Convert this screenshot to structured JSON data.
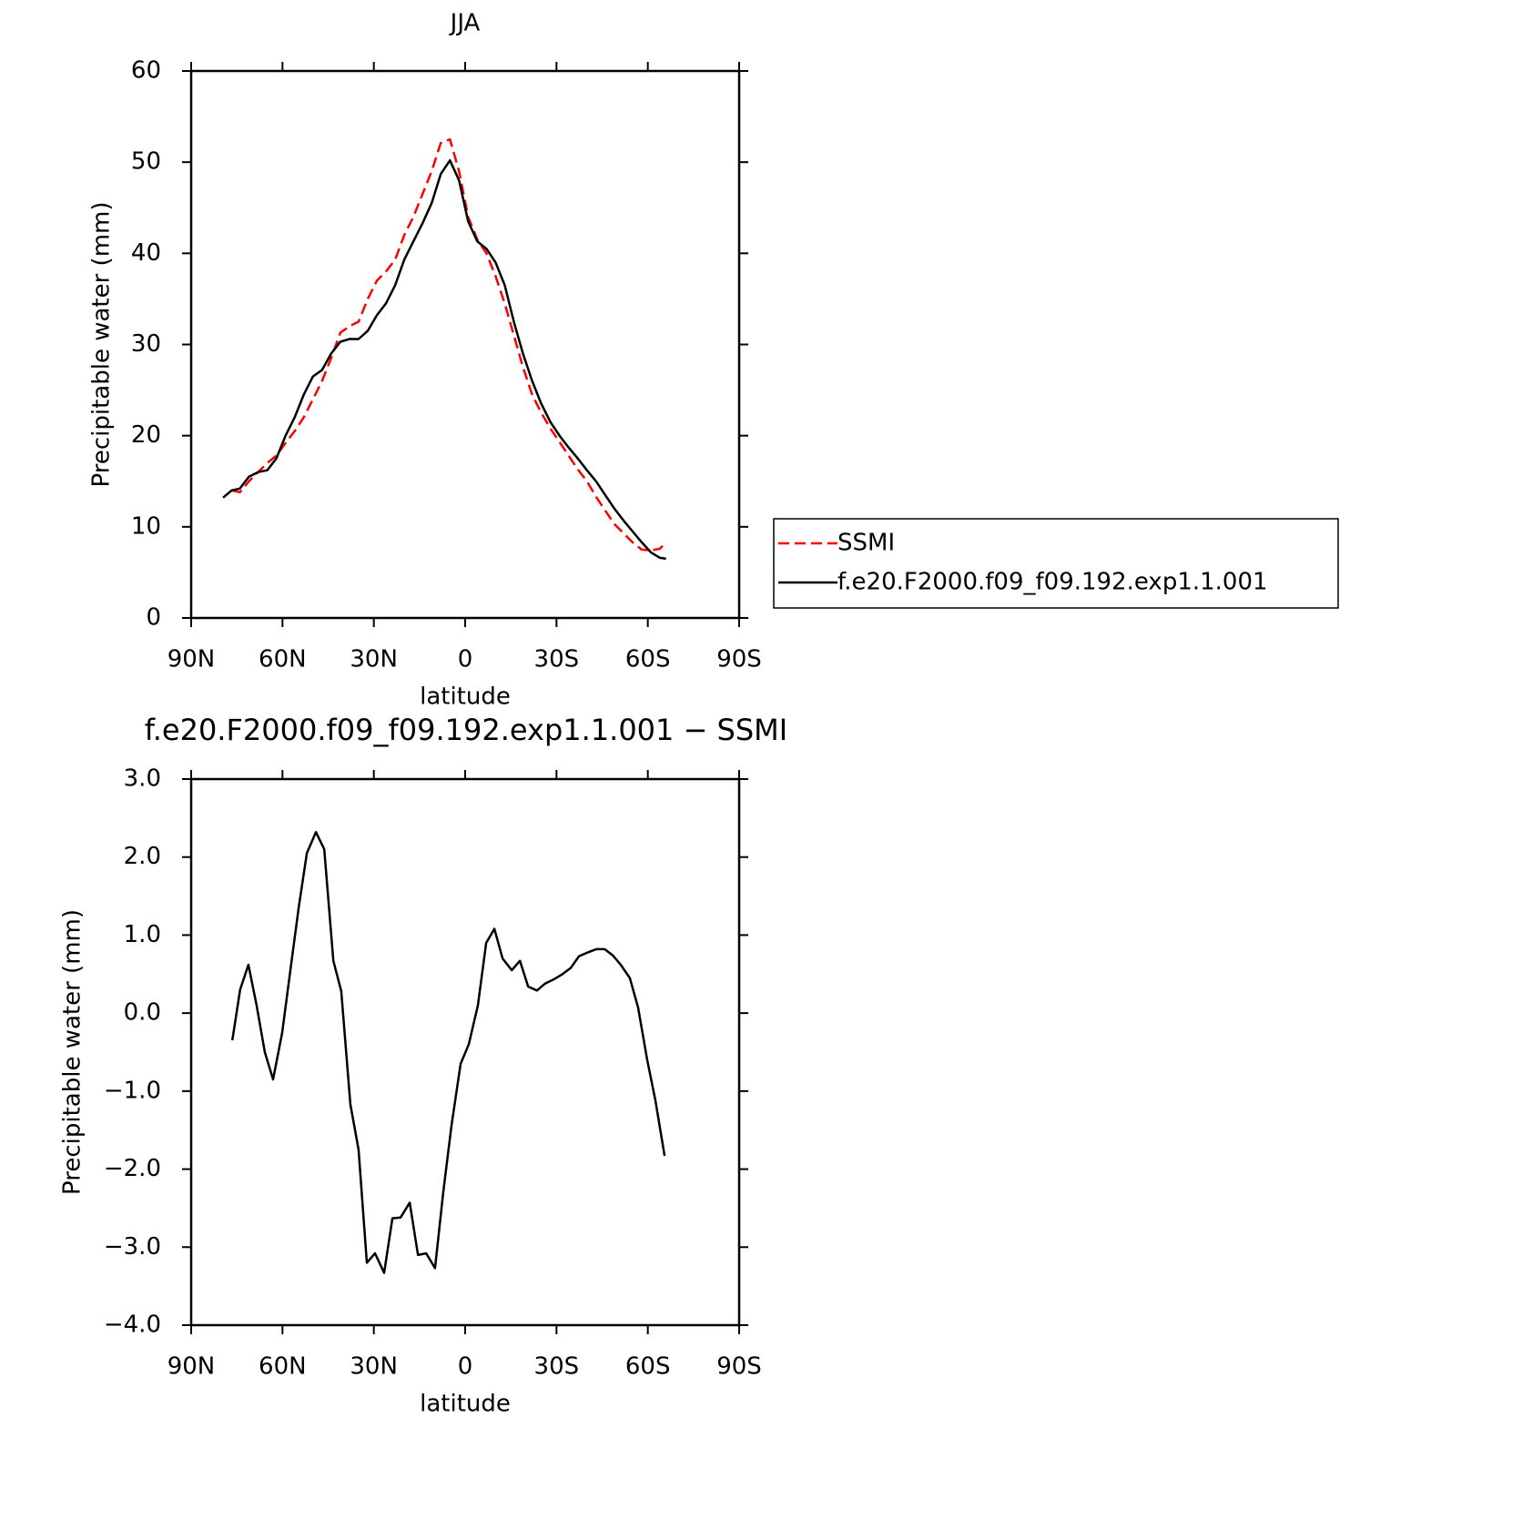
{
  "chart_data": [
    {
      "type": "line",
      "title": "JJA",
      "xlabel": "latitude",
      "ylabel": "Precipitable water (mm)",
      "x": [
        79.5,
        76.7,
        74,
        71,
        68,
        65,
        62,
        59,
        56,
        53,
        50,
        47,
        44,
        41,
        38,
        35,
        32,
        29,
        26,
        23,
        20,
        17,
        14,
        11,
        8,
        5,
        2,
        -1,
        -4,
        -7,
        -10,
        -13,
        -16,
        -19,
        -22,
        -25,
        -28,
        -31,
        -34,
        -37,
        -40,
        -43,
        -46,
        -49,
        -52,
        -55,
        -58,
        -61,
        -64,
        -66
      ],
      "series": [
        {
          "name": "SSMI",
          "color": "#ff0000",
          "dash": true,
          "values": [
            null,
            14.0,
            13.8,
            15.0,
            16.0,
            17.0,
            17.8,
            19.2,
            20.5,
            22.0,
            24.0,
            26.0,
            28.5,
            31.3,
            32.0,
            32.5,
            35.0,
            37.0,
            38.0,
            39.3,
            42.0,
            44.0,
            46.5,
            49.0,
            52.1,
            52.5,
            49.0,
            44.0,
            41.5,
            40.0,
            37.5,
            34.5,
            31.0,
            27.5,
            24.5,
            22.5,
            20.8,
            19.3,
            17.8,
            16.3,
            15.0,
            13.3,
            11.8,
            10.3,
            9.3,
            8.3,
            7.5,
            7.4,
            7.6,
            8.3
          ]
        },
        {
          "name": "f.e20.F2000.f09_f09.192.exp1.1.001",
          "color": "#000000",
          "dash": false,
          "values": [
            13.2,
            14.0,
            14.2,
            15.5,
            16.0,
            16.2,
            17.5,
            20.0,
            22.0,
            24.5,
            26.5,
            27.2,
            29.0,
            30.3,
            30.6,
            30.6,
            31.5,
            33.2,
            34.5,
            36.5,
            39.3,
            41.3,
            43.3,
            45.5,
            48.7,
            50.2,
            48.0,
            43.5,
            41.3,
            40.5,
            39.0,
            36.5,
            32.5,
            29.0,
            26.0,
            23.5,
            21.5,
            20.0,
            18.7,
            17.5,
            16.2,
            15.0,
            13.5,
            12.0,
            10.7,
            9.5,
            8.3,
            7.2,
            6.6,
            6.5
          ]
        }
      ],
      "xlim": [
        90,
        -90
      ],
      "xticks": [
        {
          "value": 90,
          "label": "90N"
        },
        {
          "value": 60,
          "label": "60N"
        },
        {
          "value": 30,
          "label": "30N"
        },
        0,
        {
          "value": -30,
          "label": "30S"
        },
        {
          "value": -60,
          "label": "60S"
        },
        {
          "value": -90,
          "label": "90S"
        }
      ],
      "ylim": [
        0,
        60
      ],
      "yticks": [
        0,
        10,
        20,
        30,
        40,
        50,
        60
      ],
      "legend": "right"
    },
    {
      "type": "line",
      "title": "f.e20.F2000.f09_f09.192.exp1.1.001 − SSMI",
      "xlabel": "latitude",
      "ylabel": "Precipitable water (mm)",
      "x": [
        76.5,
        73.9,
        71.2,
        68.5,
        65.8,
        63.1,
        60.1,
        57.4,
        54.7,
        52,
        49,
        46.3,
        43.3,
        40.7,
        37.7,
        35,
        32.3,
        29.6,
        26.6,
        23.9,
        21.2,
        18.2,
        15.5,
        12.8,
        9.9,
        7.2,
        4.5,
        1.5,
        -1.2,
        -4.2,
        -6.9,
        -9.6,
        -12.3,
        -15.3,
        -18,
        -20.7,
        -23.6,
        -26.3,
        -29,
        -32,
        -34.7,
        -37.4,
        -40.4,
        -43.1,
        -45.8,
        -48.5,
        -51.1,
        -54.1,
        -56.8,
        -59.8,
        -62.5,
        -65.5
      ],
      "series": [
        {
          "color": "#000000",
          "dash": false,
          "values": [
            -0.35,
            0.3,
            0.62,
            0.1,
            -0.5,
            -0.85,
            -0.25,
            0.55,
            1.35,
            2.05,
            2.32,
            2.1,
            0.67,
            0.28,
            -1.17,
            -1.75,
            -3.2,
            -3.08,
            -3.33,
            -2.63,
            -2.62,
            -2.43,
            -3.1,
            -3.08,
            -3.27,
            -2.3,
            -1.45,
            -0.65,
            -0.4,
            0.1,
            0.9,
            1.08,
            0.7,
            0.55,
            0.67,
            0.34,
            0.29,
            0.38,
            0.43,
            0.5,
            0.58,
            0.73,
            0.78,
            0.82,
            0.82,
            0.74,
            0.62,
            0.45,
            0.07,
            -0.6,
            -1.12,
            -1.83
          ]
        }
      ],
      "xlim": [
        90,
        -90
      ],
      "xticks": [
        {
          "value": 90,
          "label": "90N"
        },
        {
          "value": 60,
          "label": "60N"
        },
        {
          "value": 30,
          "label": "30N"
        },
        0,
        {
          "value": -30,
          "label": "30S"
        },
        {
          "value": -60,
          "label": "60S"
        },
        {
          "value": -90,
          "label": "90S"
        }
      ],
      "ylim": [
        -4,
        3
      ],
      "yticks": [
        {
          "value": -4,
          "label": "−4.0"
        },
        {
          "value": -3,
          "label": "−3.0"
        },
        {
          "value": -2,
          "label": "−2.0"
        },
        {
          "value": -1,
          "label": "−1.0"
        },
        {
          "value": 0,
          "label": "0.0"
        },
        {
          "value": 1,
          "label": "1.0"
        },
        {
          "value": 2,
          "label": "2.0"
        },
        {
          "value": 3,
          "label": "3.0"
        }
      ]
    }
  ]
}
